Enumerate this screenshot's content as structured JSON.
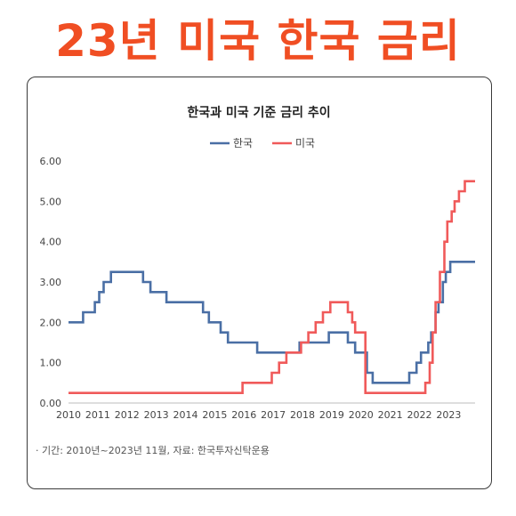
{
  "headline": "23년 미국 한국 금리",
  "note": "· 기간: 2010년~2023년 11월, 자료: 한국투자신탁운용",
  "colors": {
    "headline": "#f04e23",
    "korea": "#4a6fa5",
    "us": "#f05a5a"
  },
  "chart_data": {
    "type": "line",
    "title": "한국과 미국 기준 금리 추이",
    "xlabel": "",
    "ylabel": "",
    "legend_position": "top",
    "grid": false,
    "xlim": [
      2010,
      2023.9
    ],
    "ylim": [
      0,
      6
    ],
    "x_ticks": [
      "2010",
      "2011",
      "2012",
      "2013",
      "2014",
      "2015",
      "2016",
      "2017",
      "2018",
      "2019",
      "2020",
      "2021",
      "2022",
      "2023"
    ],
    "y_ticks": [
      "0.00",
      "1.00",
      "2.00",
      "3.00",
      "4.00",
      "5.00",
      "6.00"
    ],
    "series": [
      {
        "name": "한국",
        "color": "#4a6fa5",
        "step": true,
        "points": [
          [
            2010.0,
            2.0
          ],
          [
            2010.5,
            2.25
          ],
          [
            2010.9,
            2.5
          ],
          [
            2011.05,
            2.75
          ],
          [
            2011.2,
            3.0
          ],
          [
            2011.45,
            3.25
          ],
          [
            2012.55,
            3.0
          ],
          [
            2012.8,
            2.75
          ],
          [
            2013.35,
            2.5
          ],
          [
            2014.6,
            2.25
          ],
          [
            2014.8,
            2.0
          ],
          [
            2015.2,
            1.75
          ],
          [
            2015.45,
            1.5
          ],
          [
            2016.45,
            1.25
          ],
          [
            2017.9,
            1.5
          ],
          [
            2018.9,
            1.75
          ],
          [
            2019.55,
            1.5
          ],
          [
            2019.8,
            1.25
          ],
          [
            2020.2,
            0.75
          ],
          [
            2020.4,
            0.5
          ],
          [
            2021.65,
            0.75
          ],
          [
            2021.9,
            1.0
          ],
          [
            2022.05,
            1.25
          ],
          [
            2022.3,
            1.5
          ],
          [
            2022.4,
            1.75
          ],
          [
            2022.55,
            2.25
          ],
          [
            2022.65,
            2.5
          ],
          [
            2022.8,
            3.0
          ],
          [
            2022.9,
            3.25
          ],
          [
            2023.05,
            3.5
          ],
          [
            2023.9,
            3.5
          ]
        ]
      },
      {
        "name": "미국",
        "color": "#f05a5a",
        "step": true,
        "points": [
          [
            2010.0,
            0.25
          ],
          [
            2015.95,
            0.5
          ],
          [
            2016.95,
            0.75
          ],
          [
            2017.2,
            1.0
          ],
          [
            2017.45,
            1.25
          ],
          [
            2017.95,
            1.5
          ],
          [
            2018.2,
            1.75
          ],
          [
            2018.45,
            2.0
          ],
          [
            2018.7,
            2.25
          ],
          [
            2018.95,
            2.5
          ],
          [
            2019.55,
            2.25
          ],
          [
            2019.7,
            2.0
          ],
          [
            2019.8,
            1.75
          ],
          [
            2020.15,
            0.25
          ],
          [
            2022.2,
            0.5
          ],
          [
            2022.35,
            1.0
          ],
          [
            2022.45,
            1.75
          ],
          [
            2022.55,
            2.5
          ],
          [
            2022.7,
            3.25
          ],
          [
            2022.85,
            4.0
          ],
          [
            2022.95,
            4.5
          ],
          [
            2023.1,
            4.75
          ],
          [
            2023.2,
            5.0
          ],
          [
            2023.35,
            5.25
          ],
          [
            2023.55,
            5.5
          ],
          [
            2023.9,
            5.5
          ]
        ]
      }
    ]
  }
}
